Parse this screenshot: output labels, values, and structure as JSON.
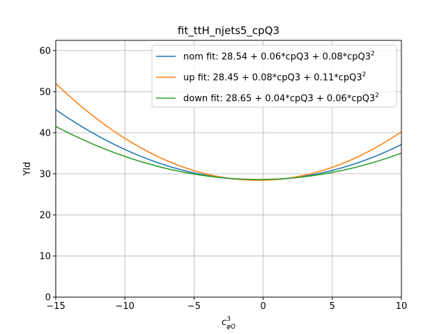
{
  "chart_data": {
    "type": "line",
    "title": "fit_ttH_njets5_cpQ3",
    "xlabel_base": "c",
    "xlabel_sup": "3",
    "xlabel_sub": "φQ",
    "ylabel": "Yld",
    "xlim": [
      -15,
      10
    ],
    "ylim": [
      0,
      62.5
    ],
    "xticks": [
      -15,
      -10,
      -5,
      0,
      5,
      10
    ],
    "yticks": [
      0,
      10,
      20,
      30,
      40,
      50,
      60
    ],
    "xtick_labels": [
      "−15",
      "−10",
      "−5",
      "0",
      "5",
      "10"
    ],
    "ytick_labels": [
      "0",
      "10",
      "20",
      "30",
      "40",
      "50",
      "60"
    ],
    "grid": true,
    "legend_position": "top-right",
    "series": [
      {
        "name": "nom fit: 28.54 + 0.06*cpQ3 + 0.08*cpQ3",
        "name_sup": "2",
        "color": "#1f77b4",
        "coefficients": [
          28.54,
          0.06,
          0.08
        ]
      },
      {
        "name": "up fit: 28.45 + 0.08*cpQ3 + 0.11*cpQ3",
        "name_sup": "2",
        "color": "#ff7f0e",
        "coefficients": [
          28.45,
          0.08,
          0.11
        ]
      },
      {
        "name": "down fit: 28.65 + 0.04*cpQ3 + 0.06*cpQ3",
        "name_sup": "2",
        "color": "#2ca02c",
        "coefficients": [
          28.65,
          0.04,
          0.06
        ]
      }
    ]
  }
}
